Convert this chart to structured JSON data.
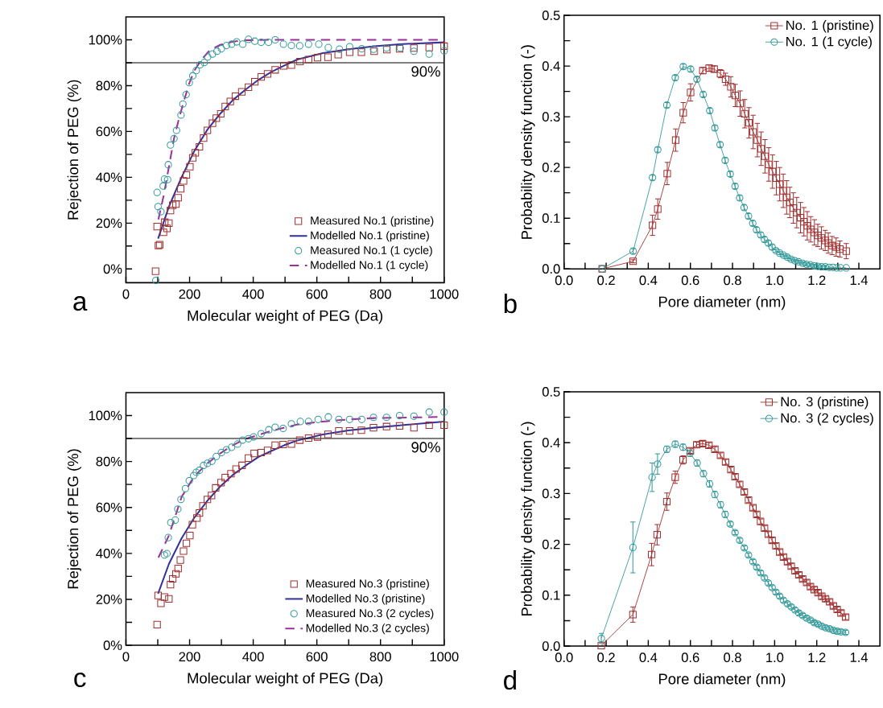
{
  "chart_data": [
    {
      "type": "scatter",
      "xlabel": "Molecular weight of PEG (Da)",
      "ylabel": "Rejection of PEG (%)",
      "annotations": [
        "a"
      ],
      "xlim": [
        0,
        1000
      ],
      "ylim": [
        -6,
        110
      ],
      "xticks": [
        0,
        {
          "value": 100,
          "label": null
        },
        200,
        {
          "value": 300,
          "label": null
        },
        400,
        {
          "value": 500,
          "label": null
        },
        600,
        {
          "value": 700,
          "label": null
        },
        800,
        {
          "value": 900,
          "label": null
        },
        1000
      ],
      "yticks": [
        {
          "value": 0,
          "label": "0%"
        },
        {
          "value": 10,
          "label": null
        },
        {
          "value": 20,
          "label": "20%"
        },
        {
          "value": 30,
          "label": null
        },
        {
          "value": 40,
          "label": "40%"
        },
        {
          "value": 50,
          "label": null
        },
        {
          "value": 60,
          "label": "60%"
        },
        {
          "value": 70,
          "label": null
        },
        {
          "value": 80,
          "label": "80%"
        },
        {
          "value": 90,
          "label": null
        },
        {
          "value": 100,
          "label": "100%"
        }
      ],
      "ref_lines": [
        {
          "axis": "y",
          "value": 90,
          "label": "90%",
          "color": "#000000"
        }
      ],
      "legend": "bottom right",
      "series": [
        {
          "name": "Measured No.1 (pristine)",
          "type": "scatter",
          "marker": "square",
          "color": "#a03030",
          "x": [
            93,
            102,
            106,
            98,
            118,
            129,
            135,
            122,
            140,
            147,
            157,
            164,
            172,
            181,
            190,
            201,
            210,
            218,
            231,
            244,
            256,
            272,
            284,
            298,
            312,
            328,
            344,
            364,
            385,
            405,
            425,
            445,
            469,
            496,
            520,
            547,
            574,
            602,
            635,
            667,
            703,
            740,
            780,
            820,
            860,
            905,
            953,
            1000
          ],
          "values": [
            -1,
            10.2,
            10.6,
            18.5,
            16,
            17.7,
            20,
            20.4,
            25.5,
            27.8,
            28.3,
            31.1,
            35,
            38.4,
            41,
            44.6,
            48.5,
            50.7,
            53.3,
            57.1,
            60.5,
            63.6,
            65.8,
            67.7,
            70.9,
            73.1,
            75.4,
            77.3,
            79.3,
            81.7,
            83.8,
            85.1,
            86.9,
            88.6,
            89,
            90.5,
            91.4,
            92.2,
            92.4,
            93.5,
            94.6,
            94.6,
            95,
            95.7,
            96.1,
            96.4,
            96.6,
            97.2
          ]
        },
        {
          "name": "Modelled No.1 (pristine)",
          "type": "line",
          "marker": "none",
          "line_style": "solid",
          "color": "#333399",
          "x": [
            101,
            135,
            175,
            215,
            256,
            296,
            336,
            377,
            417,
            457,
            498,
            538,
            619,
            699,
            780,
            860,
            1000
          ],
          "values": [
            13.2,
            27.2,
            40.1,
            51.5,
            60.8,
            67.7,
            73.7,
            78.4,
            82.6,
            86,
            88.8,
            91.4,
            94.2,
            95.9,
            97.2,
            98.1,
            98.9
          ]
        },
        {
          "name": "Measured No.1 (1 cycle)",
          "type": "scatter",
          "marker": "circle",
          "color": "#339999",
          "x": [
            94,
            98,
            101,
            110,
            121,
            131,
            117,
            133,
            140,
            151,
            159,
            173,
            179,
            189,
            199,
            210,
            221,
            233,
            246,
            257,
            272,
            286,
            300,
            316,
            332,
            348,
            367,
            385,
            405,
            425,
            448,
            469,
            495,
            520,
            546,
            574,
            606,
            636,
            671,
            703,
            741,
            778,
            819,
            862,
            905,
            953,
            1000
          ],
          "values": [
            -5,
            33.4,
            27.2,
            25,
            39.2,
            39,
            36.2,
            45.5,
            54.1,
            56.9,
            60.5,
            67.2,
            72,
            76.1,
            81.3,
            84.3,
            86.6,
            89.1,
            90.1,
            92.5,
            93.8,
            95,
            96.1,
            97.5,
            98.1,
            99.1,
            98.1,
            100.2,
            99.4,
            98.9,
            98.9,
            100,
            98.1,
            97.5,
            97.4,
            98.1,
            98.1,
            96.6,
            95.9,
            97,
            96.1,
            95.9,
            96.4,
            96.4,
            95,
            93.8,
            95.2
          ]
        },
        {
          "name": "Modelled No.1 (1 cycle)",
          "type": "line",
          "marker": "none",
          "line_style": "dashed",
          "color": "#993399",
          "x": [
            102,
            119,
            135,
            151,
            167,
            183,
            199,
            215,
            240,
            264,
            296,
            336,
            377,
            457,
            1000
          ],
          "values": [
            21.6,
            32.3,
            44.6,
            56.9,
            65.8,
            73.7,
            81,
            86.6,
            91.8,
            95.5,
            97.8,
            99.2,
            99.8,
            100,
            100
          ]
        }
      ]
    },
    {
      "type": "line",
      "xlabel": "Pore diameter (nm)",
      "ylabel": "Probability density function (-)",
      "annotations": [
        "b"
      ],
      "xlim": [
        0,
        1.5
      ],
      "ylim": [
        0,
        0.5
      ],
      "xticks": [
        {
          "value": 0,
          "label": "0.0"
        },
        {
          "value": 0.1,
          "label": null
        },
        0.2,
        {
          "value": 0.3,
          "label": null
        },
        0.4,
        {
          "value": 0.5,
          "label": null
        },
        0.6,
        {
          "value": 0.7,
          "label": null
        },
        0.8,
        {
          "value": 0.9,
          "label": null
        },
        {
          "value": 1,
          "label": "1.0"
        },
        {
          "value": 1.1,
          "label": null
        },
        1.2,
        {
          "value": 1.3,
          "label": null
        },
        1.4
      ],
      "yticks": [
        {
          "value": 0,
          "label": "0.0"
        },
        {
          "value": 0.05,
          "label": null
        },
        0.1,
        {
          "value": 0.15,
          "label": null
        },
        0.2,
        {
          "value": 0.25,
          "label": null
        },
        0.3,
        {
          "value": 0.35,
          "label": null
        },
        0.4,
        {
          "value": 0.45,
          "label": null
        },
        0.5
      ],
      "legend": "top right",
      "series": [
        {
          "name": "No. 1 (pristine)",
          "type": "line",
          "marker": "square",
          "line_style": "solid",
          "color": "#a03030",
          "x": [
            0.181,
            0.328,
            0.42,
            0.445,
            0.49,
            0.53,
            0.566,
            0.601,
            0.659,
            0.689,
            0.713,
            0.743,
            0.767,
            0.792,
            0.813,
            0.836,
            0.858,
            0.878,
            0.898,
            0.918,
            0.936,
            0.954,
            0.972,
            0.99,
            1.008,
            1.024,
            1.041,
            1.057,
            1.072,
            1.089,
            1.105,
            1.123,
            1.139,
            1.155,
            1.171,
            1.189,
            1.205,
            1.222,
            1.24,
            1.255,
            1.273,
            1.292,
            1.31,
            1.34
          ],
          "values": [
            0,
            0.015,
            0.086,
            0.118,
            0.188,
            0.254,
            0.308,
            0.348,
            0.391,
            0.396,
            0.394,
            0.385,
            0.374,
            0.359,
            0.342,
            0.326,
            0.306,
            0.288,
            0.27,
            0.254,
            0.237,
            0.222,
            0.206,
            0.192,
            0.179,
            0.167,
            0.154,
            0.141,
            0.131,
            0.12,
            0.111,
            0.101,
            0.093,
            0.085,
            0.078,
            0.072,
            0.066,
            0.061,
            0.056,
            0.051,
            0.046,
            0.043,
            0.039,
            0.035
          ],
          "errors": [
            null,
            0.003,
            0.02,
            0.02,
            0.022,
            0.022,
            0.02,
            0.017,
            0.006,
            0.006,
            0.006,
            0.008,
            0.012,
            0.02,
            0.022,
            0.025,
            0.028,
            0.03,
            0.033,
            0.033,
            0.033,
            0.033,
            0.033,
            0.033,
            0.033,
            0.033,
            0.033,
            0.033,
            0.03,
            0.03,
            0.03,
            0.03,
            0.028,
            0.028,
            0.025,
            0.025,
            0.022,
            0.022,
            0.02,
            0.02,
            0.018,
            0.018,
            0.016,
            0.015
          ]
        },
        {
          "name": "No. 1 (1 cycle)",
          "type": "line",
          "marker": "circle",
          "line_style": "solid",
          "color": "#339999",
          "x": [
            0.181,
            0.328,
            0.42,
            0.445,
            0.488,
            0.528,
            0.566,
            0.601,
            0.631,
            0.661,
            0.692,
            0.716,
            0.741,
            0.765,
            0.789,
            0.812,
            0.834,
            0.855,
            0.876,
            0.896,
            0.914,
            0.934,
            0.952,
            0.97,
            0.988,
            1.006,
            1.024,
            1.042,
            1.06,
            1.078,
            1.096,
            1.114,
            1.133,
            1.151,
            1.169,
            1.187,
            1.205,
            1.223,
            1.241,
            1.259,
            1.277,
            1.295,
            1.313,
            1.34
          ],
          "values": [
            0,
            0.035,
            0.18,
            0.235,
            0.323,
            0.377,
            0.399,
            0.394,
            0.374,
            0.344,
            0.312,
            0.278,
            0.245,
            0.214,
            0.187,
            0.163,
            0.14,
            0.121,
            0.104,
            0.09,
            0.077,
            0.067,
            0.058,
            0.051,
            0.043,
            0.036,
            0.031,
            0.027,
            0.023,
            0.019,
            0.016,
            0.014,
            0.011,
            0.009,
            0.008,
            0.006,
            0.005,
            0.004,
            0.004,
            0.003,
            0.003,
            0.002,
            0.002,
            0.002
          ],
          "errors": [
            null,
            0.005,
            0.005,
            0.005,
            0.005,
            0.005,
            0.005,
            0.005,
            0.005,
            0.005,
            0.005,
            0.005,
            0.005,
            0.005,
            0.005,
            0.005,
            0.005,
            0.005,
            0.005,
            0.005,
            0.005,
            0.005,
            0.005,
            0.005,
            0.005,
            0.003,
            0.003,
            0.003,
            0.003,
            0.003,
            0.003,
            0.003,
            0.003,
            0.003,
            0.003,
            0.003,
            0.003,
            0.003,
            0.003,
            null,
            null,
            null,
            null,
            null
          ]
        }
      ]
    },
    {
      "type": "scatter",
      "xlabel": "Molecular weight of PEG (Da)",
      "ylabel": "Rejection of PEG (%)",
      "annotations": [
        "c"
      ],
      "xlim": [
        0,
        1000
      ],
      "ylim": [
        0,
        110
      ],
      "xticks": [
        0,
        {
          "value": 100,
          "label": null
        },
        200,
        {
          "value": 300,
          "label": null
        },
        400,
        {
          "value": 500,
          "label": null
        },
        600,
        {
          "value": 700,
          "label": null
        },
        800,
        {
          "value": 900,
          "label": null
        },
        1000
      ],
      "yticks": [
        {
          "value": 0,
          "label": "0%"
        },
        {
          "value": 10,
          "label": null
        },
        {
          "value": 20,
          "label": "20%"
        },
        {
          "value": 30,
          "label": null
        },
        {
          "value": 40,
          "label": "40%"
        },
        {
          "value": 50,
          "label": null
        },
        {
          "value": 60,
          "label": "60%"
        },
        {
          "value": 70,
          "label": null
        },
        {
          "value": 80,
          "label": "80%"
        },
        {
          "value": 90,
          "label": null
        },
        {
          "value": 100,
          "label": "100%"
        }
      ],
      "ref_lines": [
        {
          "axis": "y",
          "value": 90,
          "label": "90%",
          "color": "#000000"
        }
      ],
      "legend": "bottom right",
      "series": [
        {
          "name": "Measured No.3 (pristine)",
          "type": "scatter",
          "marker": "square",
          "color": "#a03030",
          "x": [
            98,
            101,
            110,
            121,
            135,
            140,
            147,
            157,
            164,
            171,
            181,
            190,
            201,
            209,
            223,
            231,
            242,
            256,
            269,
            282,
            299,
            312,
            330,
            346,
            365,
            385,
            403,
            425,
            445,
            469,
            494,
            520,
            546,
            574,
            602,
            635,
            669,
            703,
            740,
            778,
            819,
            860,
            905,
            953,
            1000
          ],
          "values": [
            9,
            21.7,
            18.3,
            21,
            20.2,
            26.4,
            28.9,
            31.1,
            33.4,
            37.1,
            41,
            44.4,
            47.8,
            52.5,
            55.4,
            57.6,
            60.7,
            63.5,
            65.2,
            68.5,
            70.8,
            73,
            74.7,
            76.7,
            78.3,
            81.5,
            83.5,
            83.9,
            84.8,
            87.1,
            87.4,
            87.6,
            89.3,
            90.2,
            90.7,
            91.8,
            93.3,
            93.3,
            93.6,
            94.7,
            95.2,
            95.5,
            94.7,
            95.8,
            95.8
          ]
        },
        {
          "name": "Modelled No.3 (pristine)",
          "type": "line",
          "marker": "none",
          "line_style": "solid",
          "color": "#333399",
          "x": [
            101,
            135,
            175,
            215,
            256,
            296,
            336,
            377,
            417,
            457,
            498,
            538,
            619,
            699,
            780,
            860,
            1000
          ],
          "values": [
            22.5,
            35.4,
            46.6,
            55.6,
            62.9,
            69.1,
            74.2,
            78.3,
            82,
            84.6,
            87.1,
            89.1,
            91.8,
            93.5,
            94.7,
            95.7,
            97.4
          ]
        },
        {
          "name": "Measured No.3 (2 cycles)",
          "type": "scatter",
          "marker": "circle",
          "color": "#339999",
          "x": [
            121,
            129,
            133,
            141,
            155,
            163,
            173,
            187,
            199,
            213,
            221,
            231,
            244,
            256,
            270,
            284,
            300,
            316,
            332,
            351,
            367,
            385,
            401,
            425,
            449,
            469,
            494,
            520,
            548,
            574,
            604,
            636,
            669,
            703,
            741,
            778,
            819,
            860,
            905,
            953,
            1000
          ],
          "values": [
            39.3,
            39.9,
            46.9,
            53.4,
            54.5,
            59.3,
            63.5,
            68.2,
            71.6,
            73.9,
            75.3,
            76.2,
            78.3,
            79.2,
            80.1,
            82.2,
            83.9,
            85.1,
            86.2,
            87.6,
            89.3,
            89.9,
            90.7,
            92.1,
            93.8,
            94.9,
            94.4,
            96.4,
            97.4,
            97.4,
            98.3,
            99.4,
            98.3,
            98.3,
            98.3,
            99.2,
            99.2,
            100,
            99.7,
            101.5,
            101.5
          ]
        },
        {
          "name": "Modelled No.3 (2 cycles)",
          "type": "line",
          "marker": "none",
          "line_style": "dashed",
          "color": "#993399",
          "x": [
            102,
            135,
            175,
            215,
            256,
            296,
            336,
            377,
            457,
            538,
            619,
            699,
            780,
            1000
          ],
          "values": [
            38.2,
            47.8,
            64.6,
            73.6,
            79.2,
            83.5,
            87.1,
            89.9,
            93.3,
            96.1,
            97.4,
            98.3,
            98.9,
            99.4
          ]
        }
      ]
    },
    {
      "type": "line",
      "xlabel": "Pore diameter (nm)",
      "ylabel": "Probability density function (-)",
      "annotations": [
        "d"
      ],
      "xlim": [
        0,
        1.5
      ],
      "ylim": [
        0,
        0.5
      ],
      "xticks": [
        {
          "value": 0,
          "label": "0.0"
        },
        {
          "value": 0.1,
          "label": null
        },
        0.2,
        {
          "value": 0.3,
          "label": null
        },
        0.4,
        {
          "value": 0.5,
          "label": null
        },
        0.6,
        {
          "value": 0.7,
          "label": null
        },
        0.8,
        {
          "value": 0.9,
          "label": null
        },
        {
          "value": 1,
          "label": "1.0"
        },
        {
          "value": 1.1,
          "label": null
        },
        1.2,
        {
          "value": 1.3,
          "label": null
        },
        1.4
      ],
      "yticks": [
        {
          "value": 0,
          "label": "0.0"
        },
        {
          "value": 0.05,
          "label": null
        },
        0.1,
        {
          "value": 0.15,
          "label": null
        },
        0.2,
        {
          "value": 0.25,
          "label": null
        },
        0.3,
        {
          "value": 0.35,
          "label": null
        },
        0.4,
        {
          "value": 0.45,
          "label": null
        },
        0.5
      ],
      "legend": "top right",
      "series": [
        {
          "name": "No. 3 (pristine)",
          "type": "line",
          "marker": "square",
          "line_style": "solid",
          "color": "#a03030",
          "x": [
            0.177,
            0.327,
            0.416,
            0.442,
            0.488,
            0.528,
            0.565,
            0.6,
            0.63,
            0.658,
            0.688,
            0.716,
            0.743,
            0.767,
            0.792,
            0.812,
            0.834,
            0.856,
            0.876,
            0.897,
            0.915,
            0.933,
            0.952,
            0.97,
            0.988,
            1.006,
            1.024,
            1.042,
            1.061,
            1.079,
            1.097,
            1.115,
            1.133,
            1.152,
            1.17,
            1.188,
            1.206,
            1.224,
            1.242,
            1.261,
            1.279,
            1.297,
            1.315,
            1.337
          ],
          "values": [
            0.001,
            0.062,
            0.18,
            0.219,
            0.284,
            0.332,
            0.366,
            0.384,
            0.396,
            0.398,
            0.395,
            0.387,
            0.375,
            0.362,
            0.347,
            0.333,
            0.318,
            0.303,
            0.287,
            0.272,
            0.259,
            0.245,
            0.232,
            0.22,
            0.208,
            0.197,
            0.185,
            0.175,
            0.166,
            0.157,
            0.148,
            0.14,
            0.132,
            0.125,
            0.117,
            0.111,
            0.105,
            0.098,
            0.093,
            0.087,
            0.079,
            0.072,
            0.065,
            0.057
          ],
          "errors": [
            null,
            0.015,
            0.022,
            0.02,
            0.017,
            0.012,
            0.008,
            0.005,
            0.005,
            0.005,
            0.005,
            0.005,
            0.005,
            0.005,
            0.005,
            0.005,
            0.005,
            0.005,
            0.005,
            0.005,
            0.005,
            0.005,
            0.005,
            0.005,
            0.005,
            0.005,
            0.005,
            0.005,
            0.005,
            0.005,
            0.005,
            0.005,
            0.005,
            0.005,
            0.005,
            0.005,
            0.005,
            0.005,
            0.005,
            0.005,
            0.005,
            0.005,
            0.005,
            0.005
          ]
        },
        {
          "name": "No. 3 (2 cycles)",
          "type": "line",
          "marker": "circle",
          "line_style": "solid",
          "color": "#339999",
          "x": [
            0.177,
            0.327,
            0.418,
            0.444,
            0.488,
            0.528,
            0.565,
            0.598,
            0.632,
            0.662,
            0.691,
            0.716,
            0.743,
            0.765,
            0.789,
            0.812,
            0.834,
            0.856,
            0.876,
            0.897,
            0.915,
            0.933,
            0.952,
            0.97,
            0.988,
            1.006,
            1.024,
            1.042,
            1.061,
            1.079,
            1.097,
            1.115,
            1.133,
            1.152,
            1.17,
            1.188,
            1.206,
            1.224,
            1.242,
            1.261,
            1.279,
            1.297,
            1.315,
            1.337
          ],
          "values": [
            0.015,
            0.194,
            0.332,
            0.358,
            0.387,
            0.397,
            0.391,
            0.379,
            0.36,
            0.339,
            0.319,
            0.298,
            0.278,
            0.259,
            0.24,
            0.223,
            0.208,
            0.193,
            0.179,
            0.166,
            0.155,
            0.144,
            0.134,
            0.124,
            0.115,
            0.106,
            0.098,
            0.09,
            0.083,
            0.077,
            0.071,
            0.065,
            0.06,
            0.055,
            0.051,
            0.046,
            0.043,
            0.039,
            0.036,
            0.034,
            0.031,
            0.029,
            0.028,
            0.027
          ],
          "errors": [
            0.01,
            0.05,
            0.028,
            0.02,
            0.006,
            0.006,
            0.006,
            0.006,
            0.006,
            0.006,
            0.006,
            0.006,
            0.006,
            0.006,
            0.004,
            0.004,
            0.004,
            0.004,
            0.004,
            0.004,
            0.004,
            0.004,
            0.004,
            0.004,
            0.004,
            0.004,
            0.004,
            0.004,
            0.004,
            0.004,
            0.004,
            0.004,
            0.004,
            0.004,
            0.004,
            0.004,
            0.004,
            0.004,
            0.004,
            0.004,
            0.004,
            0.004,
            0.004,
            0.004
          ]
        }
      ]
    }
  ]
}
